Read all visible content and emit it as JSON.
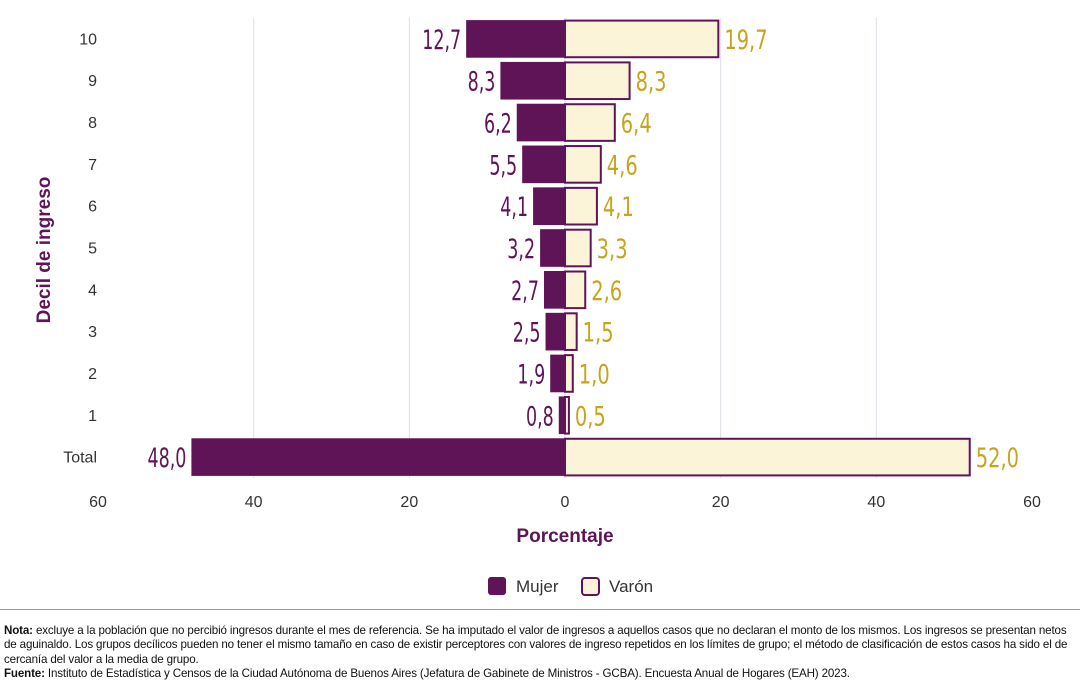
{
  "chart_data": {
    "type": "bar",
    "orientation": "horizontal-population-pyramid",
    "categories": [
      "10",
      "9",
      "8",
      "7",
      "6",
      "5",
      "4",
      "3",
      "2",
      "1",
      "Total"
    ],
    "series": [
      {
        "name": "Mujer",
        "side": "left",
        "color": "#5e1456",
        "values": [
          12.7,
          8.3,
          6.2,
          5.5,
          4.1,
          3.2,
          2.7,
          2.5,
          1.9,
          0.8,
          48.0
        ],
        "labels": [
          "12,7",
          "8,3",
          "6,2",
          "5,5",
          "4,1",
          "3,2",
          "2,7",
          "2,5",
          "1,9",
          "0,8",
          "48,0"
        ]
      },
      {
        "name": "Varón",
        "side": "right",
        "color": "#fbf4d8",
        "values": [
          19.7,
          8.3,
          6.4,
          4.6,
          4.1,
          3.3,
          2.6,
          1.5,
          1.0,
          0.5,
          52.0
        ],
        "labels": [
          "19,7",
          "8,3",
          "6,4",
          "4,6",
          "4,1",
          "3,3",
          "2,6",
          "1,5",
          "1,0",
          "0,5",
          "52,0"
        ]
      }
    ],
    "xlabel": "Porcentaje",
    "ylabel": "Decil de ingreso",
    "xlim": [
      -60,
      60
    ],
    "xticks": [
      -60,
      -40,
      -20,
      0,
      20,
      40,
      60
    ],
    "xtick_labels": [
      "60",
      "40",
      "20",
      "0",
      "20",
      "40",
      "60"
    ],
    "grid": true,
    "legend_position": "bottom-center",
    "colors": {
      "mujer_fill": "#5e1456",
      "varon_fill": "#fbf4d8",
      "varon_outline": "#5e1456",
      "mujer_label": "#5e1456",
      "varon_label": "#c8a41c",
      "axis_label": "#5e1456",
      "grid": "#e6dce6"
    }
  },
  "notes": {
    "nota_label": "Nota:",
    "nota_text": " excluye a la población que no percibió ingresos durante el mes de referencia. Se ha imputado el valor de ingresos a aquellos casos que no declaran el monto de los mismos. Los ingresos se presentan netos de aguinaldo. Los grupos decílicos pueden no tener el mismo tamaño en caso de existir perceptores con valores de ingreso repetidos en los límites de grupo; el método de clasificación de estos casos ha sido el de cercanía del valor a la media de grupo.",
    "fuente_label": "Fuente:",
    "fuente_text": " Instituto de Estadística y Censos de la Ciudad Autónoma de Buenos Aires (Jefatura de Gabinete de Ministros - GCBA). Encuesta Anual de Hogares (EAH) 2023."
  }
}
